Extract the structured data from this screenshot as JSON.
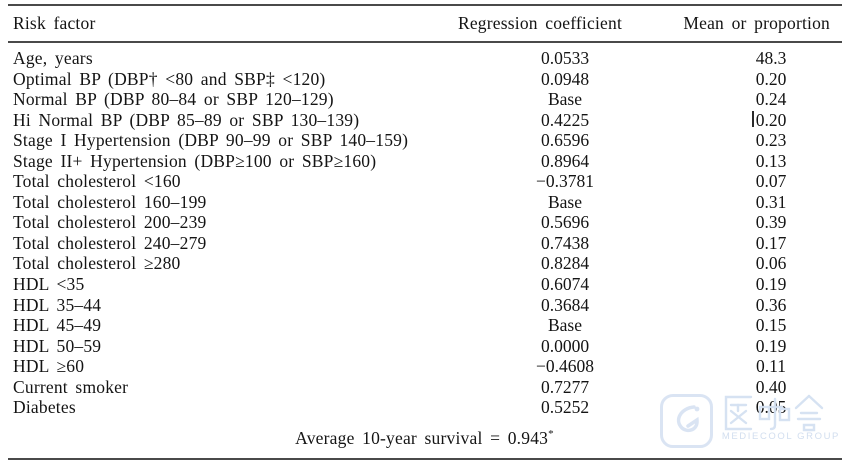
{
  "page": {
    "background": "#ffffff",
    "text_color": "#141414",
    "rule_color": "#4a4a4a"
  },
  "table": {
    "columns": [
      "Risk factor",
      "Regression coefficient",
      "Mean or proportion"
    ],
    "rows": [
      {
        "label": "Age, years",
        "coef": "0.0533",
        "mean": "48.3"
      },
      {
        "label": "Optimal BP (DBP† <80 and SBP‡ <120)",
        "coef": "0.0948",
        "mean": "0.20"
      },
      {
        "label": "Normal BP (DBP 80–84 or SBP 120–129)",
        "coef": "Base",
        "mean": "0.24"
      },
      {
        "label": "Hi Normal BP (DBP 85–89 or SBP 130–139)",
        "coef": "0.4225",
        "mean": "0.20"
      },
      {
        "label": "Stage I Hypertension (DBP 90–99 or SBP 140–159)",
        "coef": "0.6596",
        "mean": "0.23"
      },
      {
        "label": "Stage II+ Hypertension (DBP≥100 or SBP≥160)",
        "coef": "0.8964",
        "mean": "0.13"
      },
      {
        "label": "Total cholesterol <160",
        "coef": "−0.3781",
        "mean": "0.07"
      },
      {
        "label": "Total cholesterol 160–199",
        "coef": "Base",
        "mean": "0.31"
      },
      {
        "label": "Total cholesterol 200–239",
        "coef": "0.5696",
        "mean": "0.39"
      },
      {
        "label": "Total cholesterol 240–279",
        "coef": "0.7438",
        "mean": "0.17"
      },
      {
        "label": "Total cholesterol ≥280",
        "coef": "0.8284",
        "mean": "0.06"
      },
      {
        "label": "HDL <35",
        "coef": "0.6074",
        "mean": "0.19"
      },
      {
        "label": "HDL 35–44",
        "coef": "0.3684",
        "mean": "0.36"
      },
      {
        "label": "HDL 45–49",
        "coef": "Base",
        "mean": "0.15"
      },
      {
        "label": "HDL 50–59",
        "coef": "0.0000",
        "mean": "0.19"
      },
      {
        "label": "HDL ≥60",
        "coef": "−0.4608",
        "mean": "0.11"
      },
      {
        "label": "Current smoker",
        "coef": "0.7277",
        "mean": "0.40"
      },
      {
        "label": "Diabetes",
        "coef": "0.5252",
        "mean": "0.05"
      }
    ],
    "footer_text": "Average 10-year survival = 0.943",
    "footer_superscript": "*"
  },
  "watermark": {
    "brand_cjk": "医咖会",
    "brand_sub": "MEDIECOOL GROUP",
    "color": "#d8e2f0"
  }
}
